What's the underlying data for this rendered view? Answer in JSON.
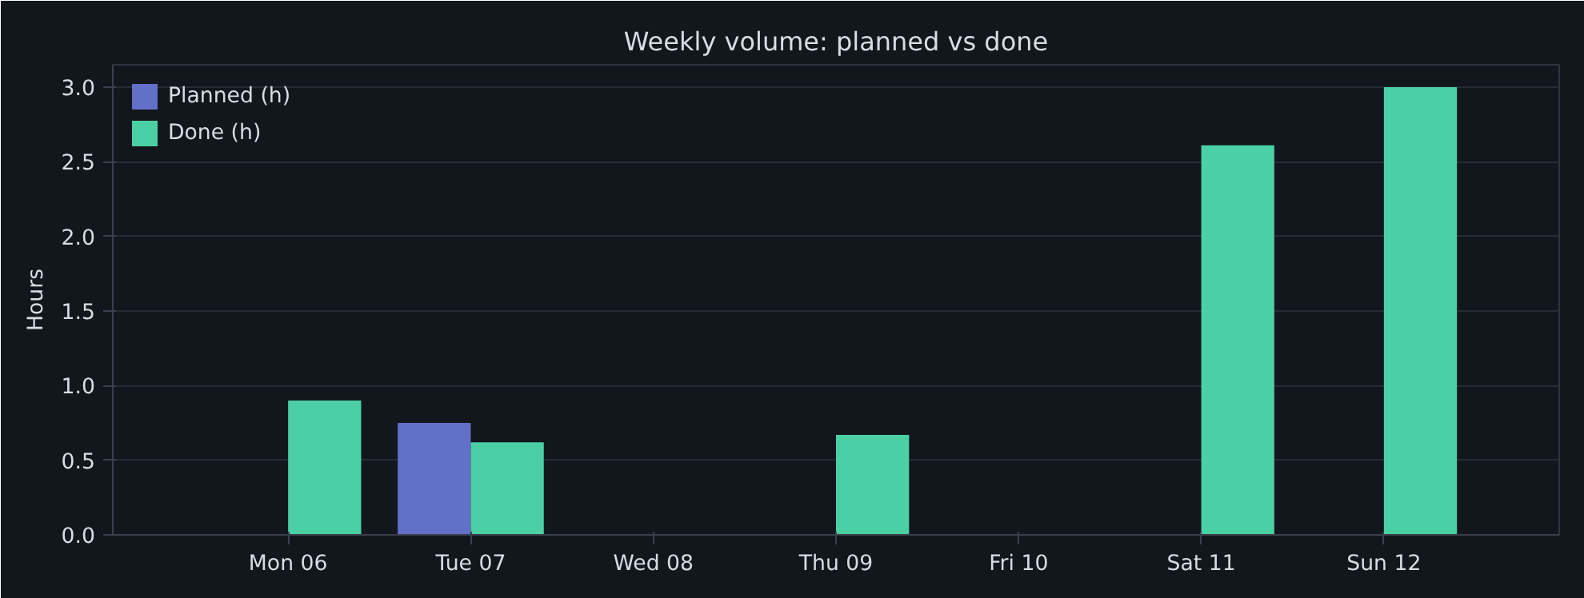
{
  "chart_data": {
    "type": "bar",
    "title": "Weekly volume: planned vs done",
    "ylabel": "Hours",
    "categories": [
      "Mon 06",
      "Tue 07",
      "Wed 08",
      "Thu 09",
      "Fri 10",
      "Sat 11",
      "Sun 12"
    ],
    "series": [
      {
        "name": "Planned (h)",
        "color": "#6370c8",
        "values": [
          null,
          0.75,
          null,
          null,
          null,
          null,
          null
        ]
      },
      {
        "name": "Done (h)",
        "color": "#4bd0a5",
        "values": [
          0.9,
          0.62,
          null,
          0.67,
          null,
          2.61,
          3.0
        ]
      }
    ],
    "ylim": [
      0,
      3.15
    ],
    "yticks": [
      {
        "value": 0,
        "label": "0.0"
      },
      {
        "value": 0.5,
        "label": "0.5"
      },
      {
        "value": 1,
        "label": "1.0"
      },
      {
        "value": 1.5,
        "label": "1.5"
      },
      {
        "value": 2,
        "label": "2.0"
      },
      {
        "value": 2.5,
        "label": "2.5"
      },
      {
        "value": 3,
        "label": "3.0"
      }
    ],
    "grid": "y",
    "legend": "top left"
  }
}
